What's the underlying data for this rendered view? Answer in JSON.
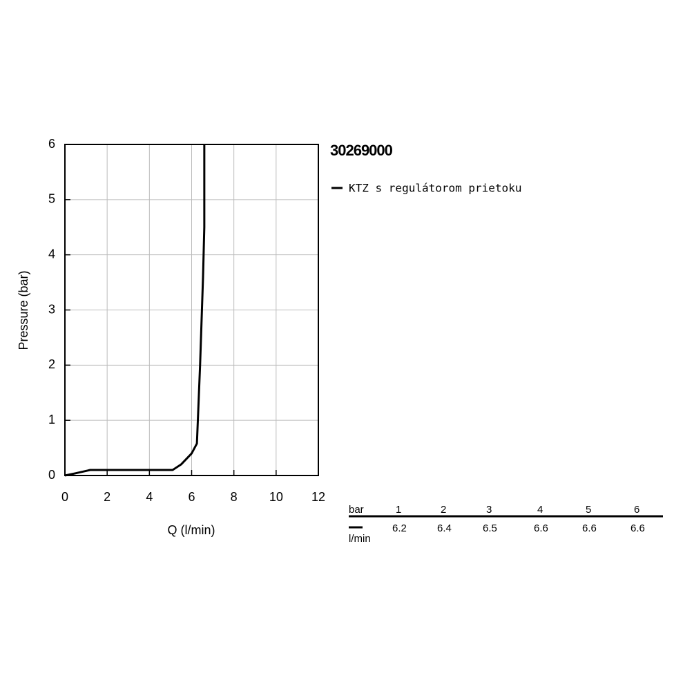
{
  "chart_data": {
    "type": "line",
    "title": "30269000",
    "x_label": "Q (l/min)",
    "y_label": "Pressure (bar)",
    "xlim": [
      0,
      12
    ],
    "xticks": [
      0,
      2,
      4,
      6,
      8,
      10,
      12
    ],
    "ylim": [
      0,
      6
    ],
    "yticks": [
      0,
      1,
      2,
      3,
      4,
      5,
      6
    ],
    "grid": true,
    "series": [
      {
        "name": "KTZ s regulátorom prietoku",
        "color": "#000000",
        "x": [
          0,
          0.5,
          1.2,
          5.1,
          5.5,
          6.0,
          6.25,
          6.4,
          6.54,
          6.6,
          6.6
        ],
        "values": [
          0,
          0.04,
          0.1,
          0.1,
          0.2,
          0.4,
          0.58,
          2,
          3.6,
          4.5,
          6
        ]
      }
    ]
  },
  "table": {
    "header": "bar",
    "columns": [
      1,
      2,
      3,
      4,
      5,
      6
    ],
    "row_label": "l/min",
    "values": [
      6.2,
      6.4,
      6.5,
      6.6,
      6.6,
      6.6
    ]
  }
}
